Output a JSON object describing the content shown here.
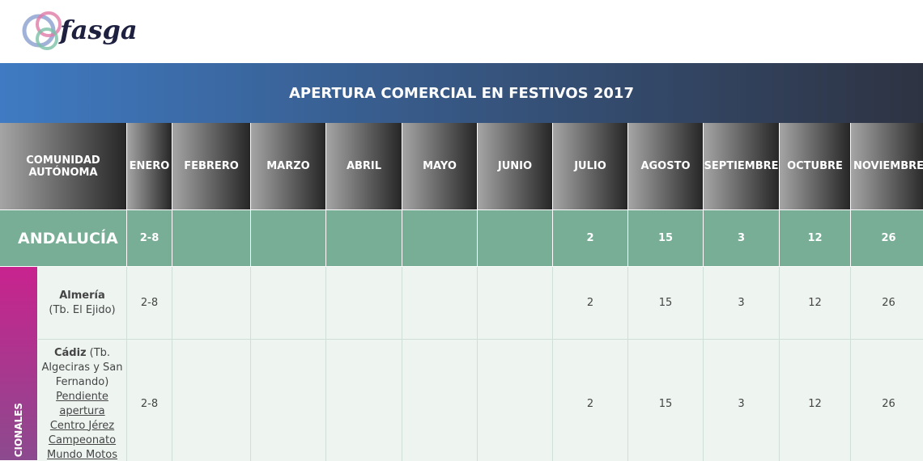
{
  "logo": {
    "text": "fasga"
  },
  "table": {
    "title": "APERTURA COMERCIAL EN FESTIVOS 2017",
    "corner_header": "COMUNIDAD AUTÓNOMA",
    "months": [
      "ENERO",
      "FEBRERO",
      "MARZO",
      "ABRIL",
      "MAYO",
      "JUNIO",
      "JULIO",
      "AGOSTO",
      "SEPTIEMBRE",
      "OCTUBRE",
      "NOVIEMBRE"
    ],
    "region": {
      "name": "ANDALUCÍA",
      "cells": [
        "2-8",
        null,
        null,
        null,
        null,
        null,
        2,
        15,
        3,
        12,
        26
      ]
    },
    "side_label": "CIONALES",
    "rows": [
      {
        "name": "Almería",
        "note": "(Tb. El Ejido)",
        "cells": [
          "2-8",
          null,
          null,
          null,
          null,
          null,
          2,
          15,
          3,
          12,
          26
        ]
      },
      {
        "name": "Cádiz",
        "note": "(Tb. Algeciras y San Fernando)",
        "extra": "Pendiente apertura Centro Jérez Campeonato Mundo Motos",
        "cells": [
          "2-8",
          null,
          null,
          null,
          null,
          null,
          2,
          15,
          3,
          12,
          26
        ]
      }
    ]
  }
}
